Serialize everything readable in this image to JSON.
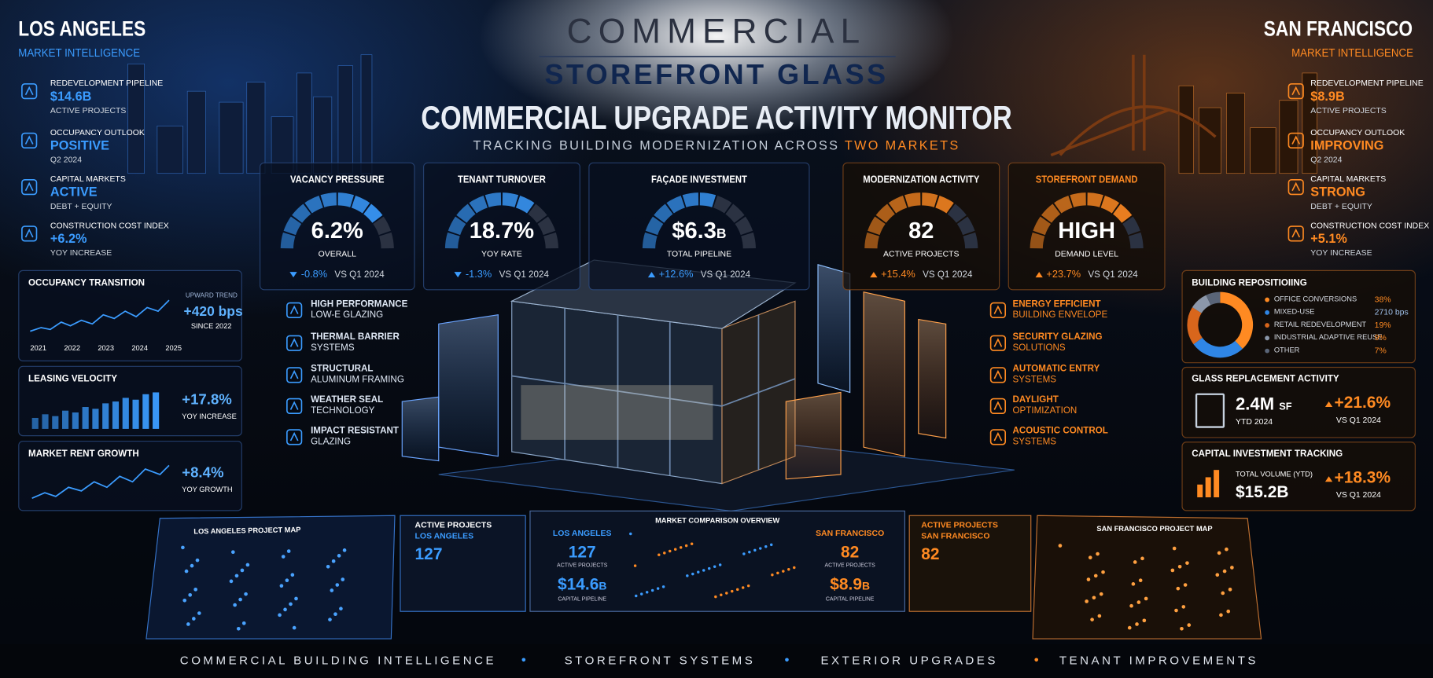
{
  "header": {
    "brand_top": "COMMERCIAL",
    "brand_bottom": "STOREFRONT GLASS",
    "title": "COMMERCIAL UPGRADE ACTIVITY MONITOR",
    "subtitle": "TRACKING BUILDING MODERNIZATION ACROSS",
    "subtitle_highlight": "TWO MARKETS"
  },
  "markets": [
    {
      "city": "LOS ANGELES",
      "label": "MARKET INTELLIGENCE",
      "stats": [
        {
          "label": "REDEVELOPMENT PIPELINE",
          "value": "$14.6B",
          "sub": "ACTIVE PROJECTS"
        },
        {
          "label": "OCCUPANCY OUTLOOK",
          "value": "POSITIVE",
          "sub": "Q2 2024"
        },
        {
          "label": "CAPITAL MARKETS",
          "value": "ACTIVE",
          "sub": "DEBT + EQUITY"
        },
        {
          "label": "CONSTRUCTION COST INDEX",
          "value": "+6.2%",
          "sub": "YOY INCREASE"
        }
      ]
    },
    {
      "city": "SAN FRANCISCO",
      "label": "MARKET INTELLIGENCE",
      "stats": [
        {
          "label": "REDEVELOPMENT PIPELINE",
          "value": "$8.9B",
          "sub": "ACTIVE PROJECTS"
        },
        {
          "label": "OCCUPANCY OUTLOOK",
          "value": "IMPROVING",
          "sub": "Q2 2024"
        },
        {
          "label": "CAPITAL MARKETS",
          "value": "STRONG",
          "sub": "DEBT + EQUITY"
        },
        {
          "label": "CONSTRUCTION COST INDEX",
          "value": "+5.1%",
          "sub": "YOY INCREASE"
        }
      ]
    }
  ],
  "gauges": [
    {
      "title": "VACANCY PRESSURE",
      "value": "6.2%",
      "caption": "OVERALL",
      "change": "-0.8%",
      "compare": "VS Q1 2024"
    },
    {
      "title": "TENANT TURNOVER",
      "value": "18.7%",
      "caption": "YOY RATE",
      "change": "-1.3%",
      "compare": "VS Q1 2024"
    },
    {
      "title": "FAÇADE INVESTMENT",
      "value": "$6.3",
      "unit": "B",
      "caption": "TOTAL PIPELINE",
      "change": "+12.6%",
      "compare": "VS Q1 2024"
    },
    {
      "title": "MODERNIZATION ACTIVITY",
      "value": "82",
      "caption": "ACTIVE PROJECTS",
      "change": "+15.4%",
      "compare": "VS Q1 2024"
    },
    {
      "title": "STOREFRONT DEMAND",
      "value": "HIGH",
      "caption": "DEMAND LEVEL",
      "change": "+23.7%",
      "compare": "VS Q1 2024"
    }
  ],
  "features_left": [
    {
      "line1": "HIGH PERFORMANCE",
      "line2": "LOW-E GLAZING"
    },
    {
      "line1": "THERMAL BARRIER",
      "line2": "SYSTEMS"
    },
    {
      "line1": "STRUCTURAL",
      "line2": "ALUMINUM FRAMING"
    },
    {
      "line1": "WEATHER SEAL",
      "line2": "TECHNOLOGY"
    },
    {
      "line1": "IMPACT RESISTANT",
      "line2": "GLAZING"
    }
  ],
  "features_right": [
    {
      "line1": "ENERGY EFFICIENT",
      "line2": "BUILDING ENVELOPE"
    },
    {
      "line1": "SECURITY GLAZING",
      "line2": "SOLUTIONS"
    },
    {
      "line1": "AUTOMATIC ENTRY",
      "line2": "SYSTEMS"
    },
    {
      "line1": "DAYLIGHT",
      "line2": "OPTIMIZATION"
    },
    {
      "line1": "ACOUSTIC CONTROL",
      "line2": "SYSTEMS"
    }
  ],
  "left_panels": {
    "occupancy": {
      "title": "OCCUPANCY TRANSITION",
      "years": [
        "2021",
        "2022",
        "2023",
        "2024",
        "2025"
      ],
      "trend_label": "UPWARD TREND",
      "value": "+420 bps",
      "caption": "SINCE 2022"
    },
    "leasing": {
      "title": "LEASING VELOCITY",
      "value": "+17.8%",
      "caption": "YOY INCREASE"
    },
    "rent": {
      "title": "MARKET RENT GROWTH",
      "value": "+8.4%",
      "caption": "YOY GROWTH"
    }
  },
  "right_panels": {
    "repositioning": {
      "title": "BUILDING REPOSITIOIING",
      "items": [
        {
          "label": "OFFICE CONVERSIONS",
          "value": "38%"
        },
        {
          "label": "MIXED-USE",
          "value": "2710 bps"
        },
        {
          "label": "RETAIL REDEVELOPMENT",
          "value": "19%"
        },
        {
          "label": "INDUSTRIAL ADAPTIVE REUSE",
          "value": "9%"
        },
        {
          "label": "OTHER",
          "value": "7%"
        }
      ]
    },
    "glass": {
      "title": "GLASS REPLACEMENT ACTIVITY",
      "value": "2.4M",
      "unit": "SF",
      "period": "YTD 2024",
      "change": "+21.6%",
      "compare": "VS Q1 2024"
    },
    "capital": {
      "title": "CAPITAL INVESTMENT TRACKING",
      "label": "TOTAL VOLUME (YTD)",
      "value": "$15.2B",
      "change": "+18.3%",
      "compare": "VS Q1 2024"
    }
  },
  "screens": {
    "la_map": "LOS ANGELES PROJECT MAP",
    "la_active": {
      "title": "ACTIVE PROJECTS",
      "city": "LOS ANGELES",
      "value": "127"
    },
    "comparison": {
      "title": "MARKET COMPARISON OVERVIEW",
      "markets": [
        {
          "city": "LOS ANGELES",
          "projects": "127",
          "projects_label": "ACTIVE PROJECTS",
          "pipeline": "$14.6",
          "pipeline_unit": "B",
          "pipeline_label": "CAPITAL PIPELINE"
        },
        {
          "city": "SAN FRANCISCO",
          "projects": "82",
          "projects_label": "ACTIVE PROJECTS",
          "pipeline": "$8.9",
          "pipeline_unit": "B",
          "pipeline_label": "CAPITAL PIPELINE"
        }
      ]
    },
    "sf_active": {
      "title": "ACTIVE PROJECTS",
      "city": "SAN FRANCISCO",
      "value": "82"
    },
    "sf_map": "SAN FRANCISCO PROJECT MAP"
  },
  "footer": [
    "COMMERCIAL BUILDING INTELLIGENCE",
    "STOREFRONT SYSTEMS",
    "EXTERIOR UPGRADES",
    "TENANT IMPROVEMENTS"
  ]
}
